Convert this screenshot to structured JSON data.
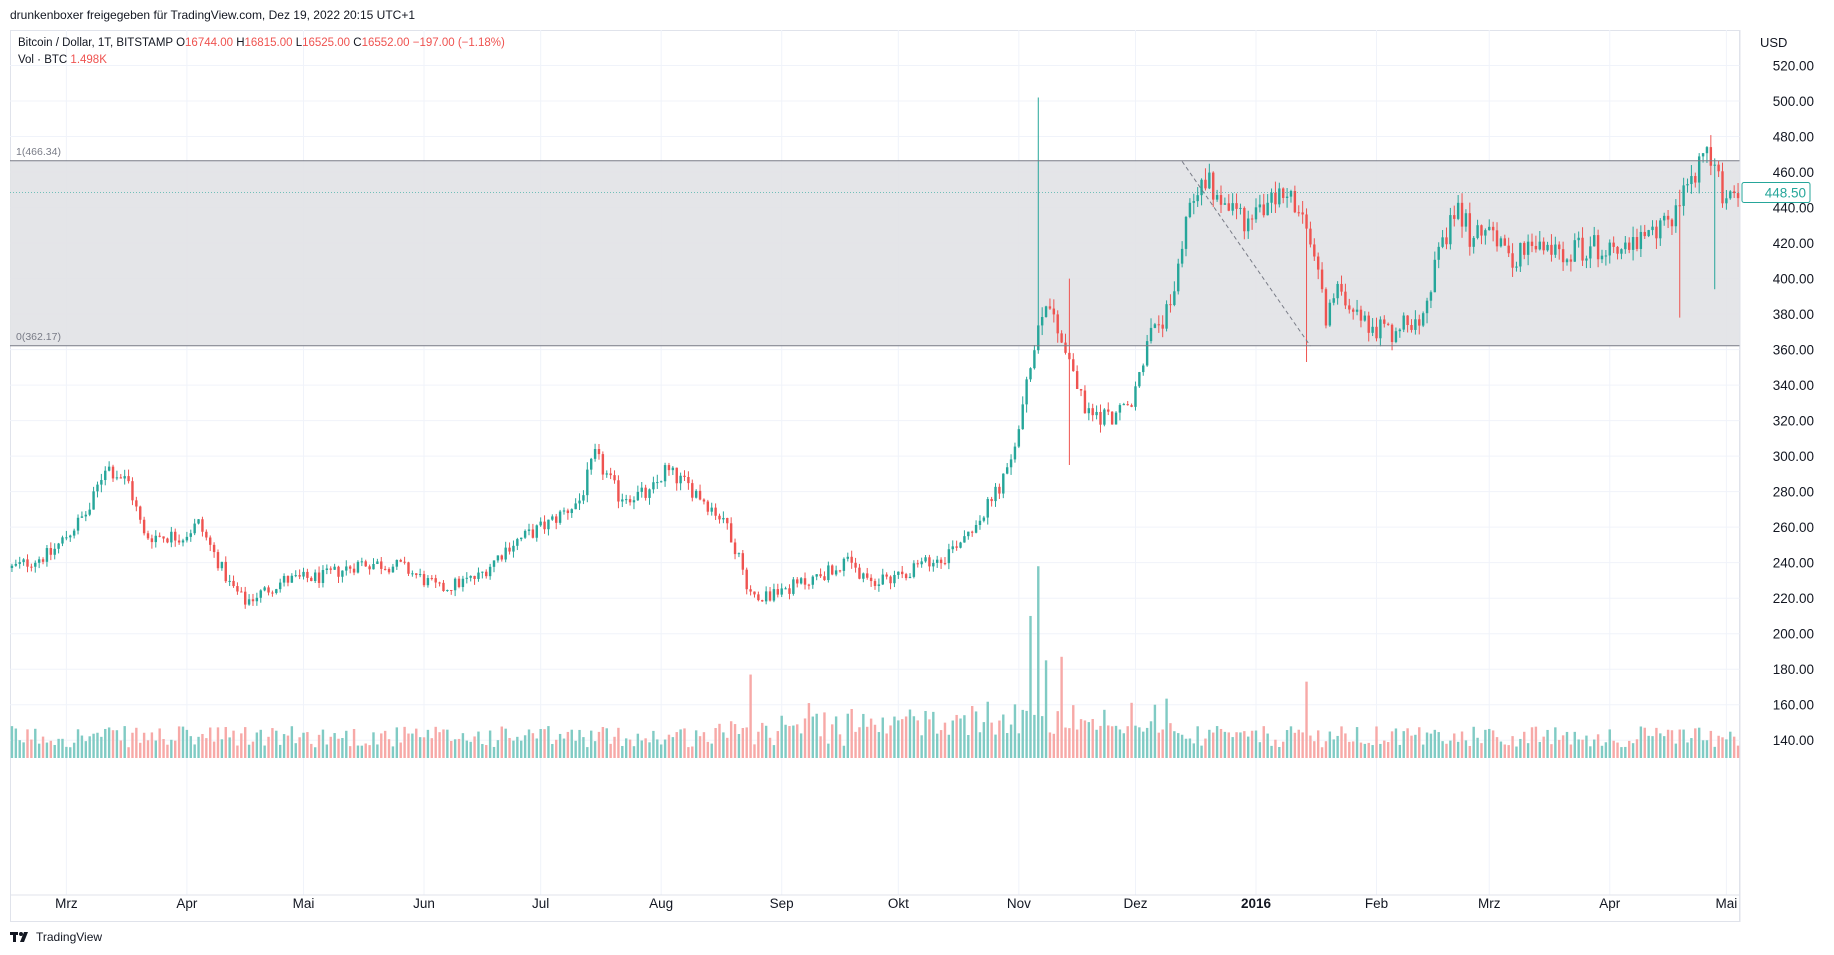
{
  "header": {
    "share_text": "drunkenboxer freigegeben für TradingView.com, Dez 19, 2022 20:15 UTC+1"
  },
  "legend": {
    "symbol": "Bitcoin / Dollar, 1T, BITSTAMP",
    "o_label": "O",
    "o_value": "16744.00",
    "h_label": "H",
    "h_value": "16815.00",
    "l_label": "L",
    "l_value": "16525.00",
    "c_label": "C",
    "c_value": "16552.00",
    "change": "−197.00 (−1.18%)",
    "vol_label": "Vol · BTC",
    "vol_value": "1.498K"
  },
  "footer": {
    "brand": "TradingView"
  },
  "colors": {
    "up": "#26a69a",
    "down": "#ef5350",
    "up_volume": "#80cbc4",
    "down_volume": "#f7a9a7",
    "zone_fill": "#e1e2e6",
    "grid": "#f0f3fa"
  },
  "chart_data": {
    "type": "candlestick",
    "ylabel": "USD",
    "ylim": [
      130,
      540
    ],
    "y_ticks": [
      "520.00",
      "500.00",
      "480.00",
      "460.00",
      "440.00",
      "420.00",
      "400.00",
      "380.00",
      "360.00",
      "340.00",
      "320.00",
      "300.00",
      "280.00",
      "260.00",
      "240.00",
      "220.00",
      "200.00",
      "180.00",
      "160.00",
      "140.00"
    ],
    "x_ticks": [
      {
        "label": "Mrz",
        "bar": 14
      },
      {
        "label": "Apr",
        "bar": 45
      },
      {
        "label": "Mai",
        "bar": 75
      },
      {
        "label": "Jun",
        "bar": 106
      },
      {
        "label": "Jul",
        "bar": 136
      },
      {
        "label": "Aug",
        "bar": 167
      },
      {
        "label": "Sep",
        "bar": 198
      },
      {
        "label": "Okt",
        "bar": 228
      },
      {
        "label": "Nov",
        "bar": 259
      },
      {
        "label": "Dez",
        "bar": 289
      },
      {
        "label": "2016",
        "bar": 320
      },
      {
        "label": "Feb",
        "bar": 351
      },
      {
        "label": "Mrz",
        "bar": 380
      },
      {
        "label": "Apr",
        "bar": 411
      },
      {
        "label": "Mai",
        "bar": 441
      }
    ],
    "last_price": "448.50",
    "fib_levels": [
      {
        "label": "1(466.34)",
        "value": 466.34
      },
      {
        "label": "0(362.17)",
        "value": 362.17
      }
    ],
    "fib_trend": [
      {
        "bar": 301,
        "price": 466
      },
      {
        "bar": 334,
        "price": 362
      }
    ],
    "bar_count": 445,
    "price_keypoints": [
      [
        0,
        237
      ],
      [
        10,
        245
      ],
      [
        20,
        270
      ],
      [
        24,
        295
      ],
      [
        30,
        285
      ],
      [
        34,
        255
      ],
      [
        44,
        255
      ],
      [
        48,
        262
      ],
      [
        56,
        228
      ],
      [
        60,
        218
      ],
      [
        70,
        230
      ],
      [
        80,
        232
      ],
      [
        90,
        240
      ],
      [
        100,
        238
      ],
      [
        110,
        225
      ],
      [
        120,
        232
      ],
      [
        128,
        250
      ],
      [
        138,
        262
      ],
      [
        146,
        275
      ],
      [
        150,
        300
      ],
      [
        156,
        278
      ],
      [
        164,
        278
      ],
      [
        168,
        292
      ],
      [
        176,
        280
      ],
      [
        184,
        262
      ],
      [
        190,
        222
      ],
      [
        195,
        222
      ],
      [
        205,
        230
      ],
      [
        215,
        240
      ],
      [
        220,
        228
      ],
      [
        230,
        235
      ],
      [
        240,
        244
      ],
      [
        250,
        268
      ],
      [
        256,
        290
      ],
      [
        260,
        325
      ],
      [
        263,
        365
      ],
      [
        266,
        390
      ],
      [
        272,
        355
      ],
      [
        276,
        325
      ],
      [
        282,
        322
      ],
      [
        288,
        328
      ],
      [
        292,
        365
      ],
      [
        298,
        382
      ],
      [
        302,
        436
      ],
      [
        306,
        458
      ],
      [
        314,
        440
      ],
      [
        318,
        432
      ],
      [
        322,
        440
      ],
      [
        328,
        450
      ],
      [
        334,
        420
      ],
      [
        338,
        380
      ],
      [
        342,
        395
      ],
      [
        348,
        375
      ],
      [
        355,
        370
      ],
      [
        362,
        380
      ],
      [
        366,
        405
      ],
      [
        372,
        440
      ],
      [
        376,
        420
      ],
      [
        380,
        435
      ],
      [
        384,
        412
      ],
      [
        390,
        416
      ],
      [
        400,
        416
      ],
      [
        410,
        418
      ],
      [
        420,
        420
      ],
      [
        426,
        432
      ],
      [
        432,
        458
      ],
      [
        436,
        468
      ],
      [
        440,
        450
      ],
      [
        444,
        448
      ]
    ],
    "wick_spikes": [
      {
        "bar": 264,
        "high": 502,
        "low": 360
      },
      {
        "bar": 272,
        "high": 400,
        "low": 295
      },
      {
        "bar": 333,
        "high": 395,
        "low": 353
      },
      {
        "bar": 429,
        "high": 450,
        "low": 378
      },
      {
        "bar": 438,
        "high": 465,
        "low": 394
      }
    ],
    "volume_spikes": [
      {
        "bar": 264,
        "value": 238
      },
      {
        "bar": 262,
        "value": 210
      },
      {
        "bar": 266,
        "value": 185
      },
      {
        "bar": 270,
        "value": 187
      },
      {
        "bar": 333,
        "value": 173
      },
      {
        "bar": 190,
        "value": 177
      }
    ]
  }
}
